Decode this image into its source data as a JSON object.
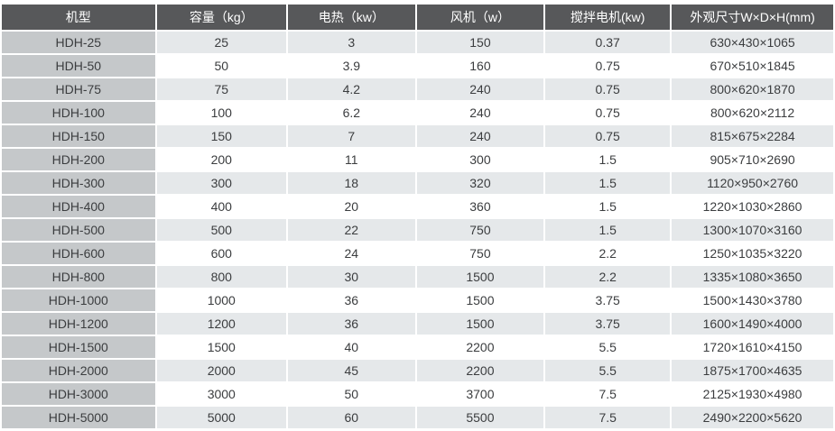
{
  "table": {
    "columns": [
      {
        "key": "model",
        "label": "机型"
      },
      {
        "key": "capacity",
        "label": "容量（kg）"
      },
      {
        "key": "heating",
        "label": "电热（kw）"
      },
      {
        "key": "fan",
        "label": "风机（w）"
      },
      {
        "key": "motor",
        "label": "搅拌电机(kw)"
      },
      {
        "key": "dimensions",
        "label": "外观尺寸W×D×H(mm)"
      }
    ],
    "rows": [
      [
        "HDH-25",
        "25",
        "3",
        "150",
        "0.37",
        "630×430×1065"
      ],
      [
        "HDH-50",
        "50",
        "3.9",
        "160",
        "0.75",
        "670×510×1845"
      ],
      [
        "HDH-75",
        "75",
        "4.2",
        "240",
        "0.75",
        "800×620×1870"
      ],
      [
        "HDH-100",
        "100",
        "6.2",
        "240",
        "0.75",
        "800×620×2112"
      ],
      [
        "HDH-150",
        "150",
        "7",
        "240",
        "0.75",
        "815×675×2284"
      ],
      [
        "HDH-200",
        "200",
        "11",
        "300",
        "1.5",
        "905×710×2690"
      ],
      [
        "HDH-300",
        "300",
        "18",
        "320",
        "1.5",
        "1120×950×2760"
      ],
      [
        "HDH-400",
        "400",
        "20",
        "360",
        "1.5",
        "1220×1030×2860"
      ],
      [
        "HDH-500",
        "500",
        "22",
        "750",
        "1.5",
        "1300×1070×3160"
      ],
      [
        "HDH-600",
        "600",
        "24",
        "750",
        "2.2",
        "1250×1035×3220"
      ],
      [
        "HDH-800",
        "800",
        "30",
        "1500",
        "2.2",
        "1335×1080×3650"
      ],
      [
        "HDH-1000",
        "1000",
        "36",
        "1500",
        "3.75",
        "1500×1430×3780"
      ],
      [
        "HDH-1200",
        "1200",
        "36",
        "1500",
        "3.75",
        "1600×1490×4000"
      ],
      [
        "HDH-1500",
        "1500",
        "40",
        "2200",
        "5.5",
        "1720×1610×4150"
      ],
      [
        "HDH-2000",
        "2000",
        "45",
        "2200",
        "5.5",
        "1875×1700×4635"
      ],
      [
        "HDH-3000",
        "3000",
        "50",
        "3700",
        "7.5",
        "2125×1930×4980"
      ],
      [
        "HDH-5000",
        "5000",
        "60",
        "5500",
        "7.5",
        "2490×2200×5620"
      ]
    ]
  },
  "colors": {
    "header_bg": "#57585a",
    "header_text": "#ffffff",
    "model_column_bg": "#c5c8ca",
    "row_alt_bg": "#e5e8ea",
    "row_bg": "#ffffff",
    "body_text": "#3b3d3f",
    "separator": "#ffffff"
  }
}
